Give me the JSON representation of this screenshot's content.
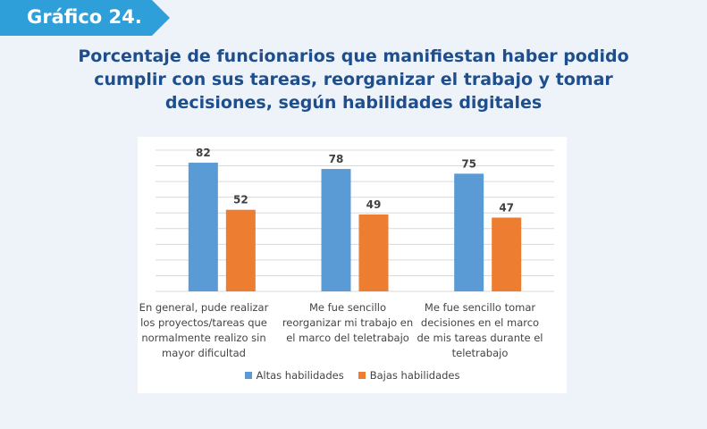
{
  "badge": {
    "label": "Gráfico 24."
  },
  "colors": {
    "badge": "#2e9fd8",
    "title": "#1f4e8c",
    "series_high": "#5b9bd5",
    "series_low": "#ed7d31",
    "grid": "#d9d9d9"
  },
  "chart_data": {
    "type": "bar",
    "title": "Porcentaje de funcionarios que manifiestan haber podido cumplir con sus tareas, reorganizar el trabajo y tomar decisiones, según habilidades digitales",
    "categories": [
      "En general, pude realizar los proyectos/tareas que normalmente realizo sin mayor dificultad",
      "Me fue sencillo reorganizar mi trabajo en el marco del teletrabajo",
      "Me fue sencillo tomar decisiones en el marco de mis tareas durante el teletrabajo"
    ],
    "series": [
      {
        "name": "Altas habilidades",
        "values": [
          82,
          78,
          75
        ]
      },
      {
        "name": "Bajas habilidades",
        "values": [
          52,
          49,
          47
        ]
      }
    ],
    "ylim": [
      0,
      90
    ],
    "grid": true,
    "legend": "bottom"
  }
}
